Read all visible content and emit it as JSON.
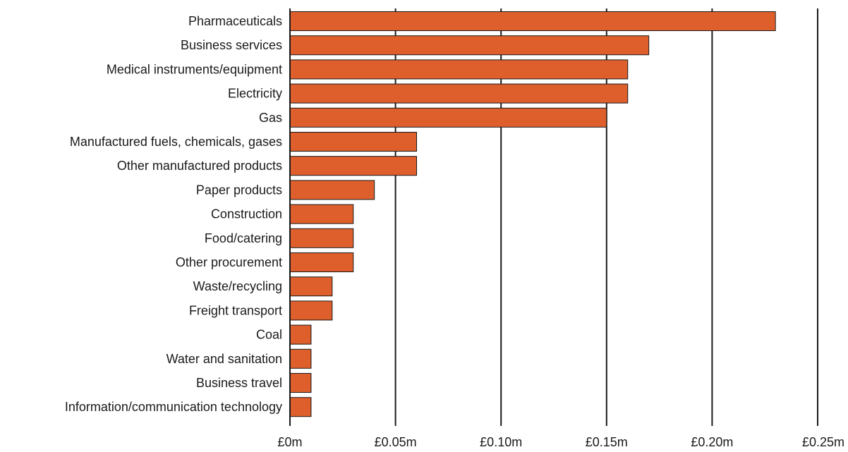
{
  "chart_data": {
    "type": "bar",
    "orientation": "horizontal",
    "categories": [
      "Pharmaceuticals",
      "Business services",
      "Medical instruments/equipment",
      "Electricity",
      "Gas",
      "Manufactured fuels, chemicals, gases",
      "Other manufactured products",
      "Paper products",
      "Construction",
      "Food/catering",
      "Other procurement",
      "Waste/recycling",
      "Freight transport",
      "Coal",
      "Water and sanitation",
      "Business travel",
      "Information/communication technology"
    ],
    "values": [
      0.23,
      0.17,
      0.16,
      0.16,
      0.15,
      0.06,
      0.06,
      0.04,
      0.03,
      0.03,
      0.03,
      0.02,
      0.02,
      0.01,
      0.01,
      0.01,
      0.01
    ],
    "xlim": [
      0,
      0.25
    ],
    "xticks": [
      0,
      0.05,
      0.1,
      0.15,
      0.2,
      0.25
    ],
    "xtick_labels": [
      "£0m",
      "£0.05m",
      "£0.10m",
      "£0.15m",
      "£0.20m",
      "£0.25m"
    ],
    "grid": "vertical",
    "title": "",
    "xlabel": "",
    "ylabel": "",
    "colors": {
      "bar": "#DE5F2C",
      "outline": "#1a1a1a",
      "grid": "#1a1a1a",
      "background": "#ffffff"
    }
  }
}
